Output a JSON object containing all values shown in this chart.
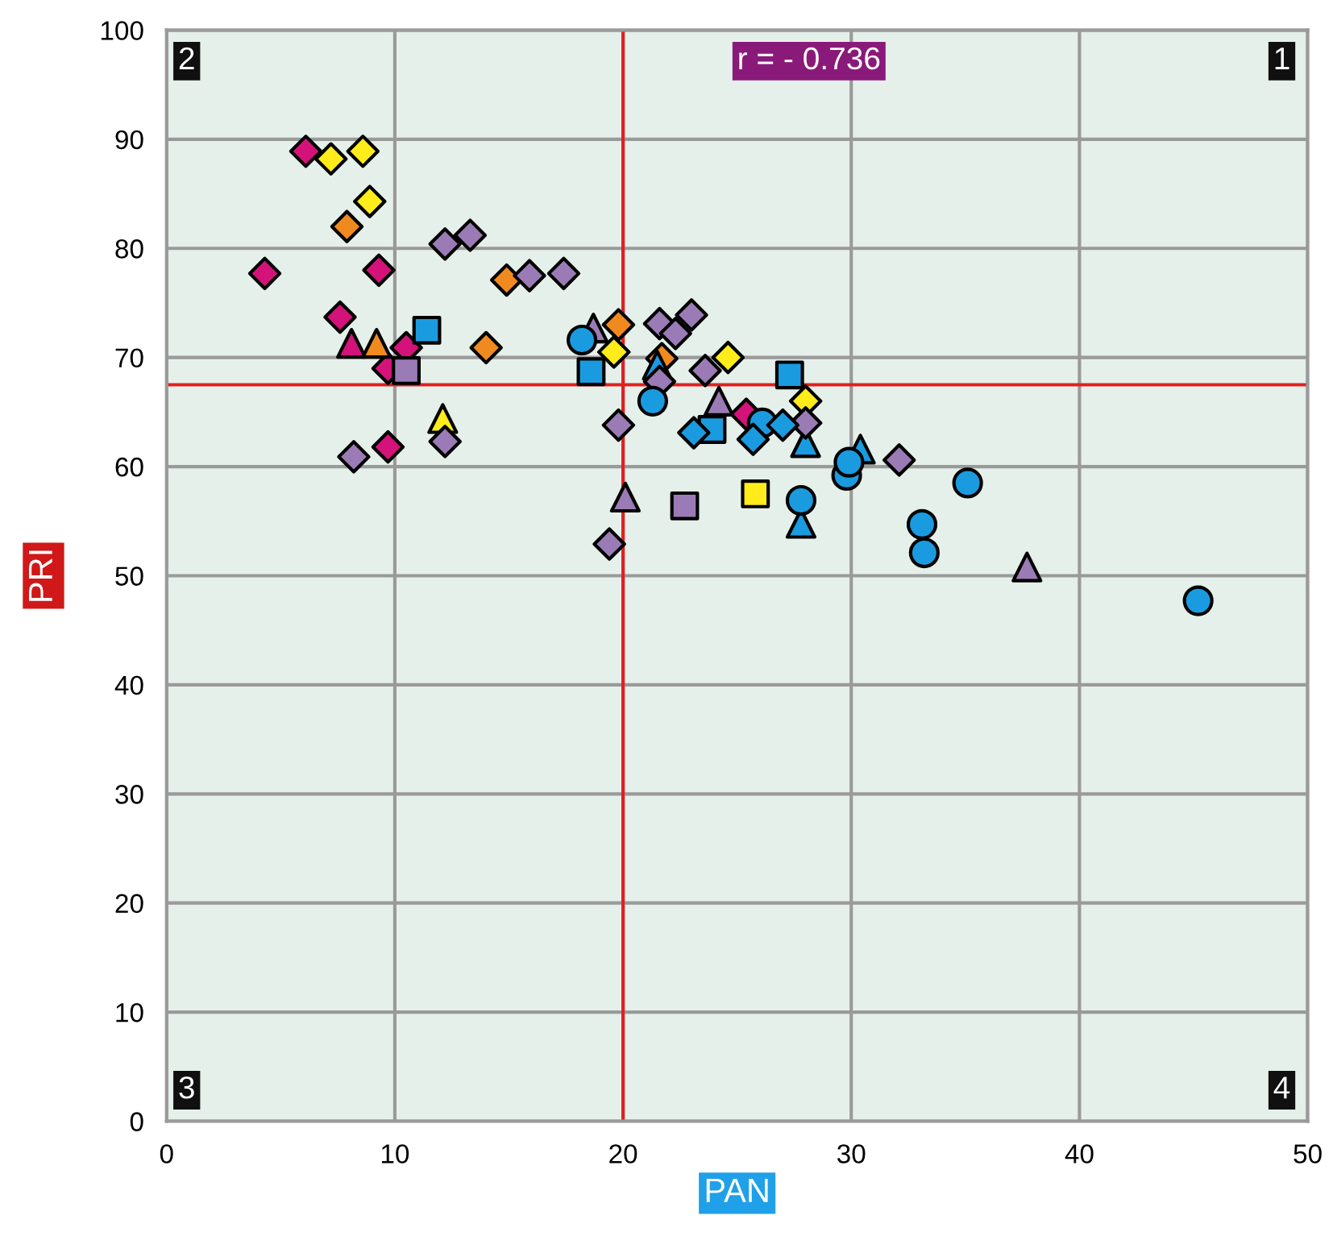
{
  "chart_data": {
    "type": "scatter",
    "xlabel": "PAN",
    "ylabel": "PRI",
    "xlim": [
      0,
      50
    ],
    "ylim": [
      0,
      100
    ],
    "xticks": [
      0,
      10,
      20,
      30,
      40,
      50
    ],
    "yticks": [
      0,
      10,
      20,
      30,
      40,
      50,
      60,
      70,
      80,
      90,
      100
    ],
    "grid": true,
    "ref_lines": [
      {
        "axis": "x",
        "value": 20,
        "color": "#e02020"
      },
      {
        "axis": "y",
        "value": 67.5,
        "color": "#e02020"
      }
    ],
    "annotations": [
      "r = - 0.736",
      "1",
      "2",
      "3",
      "4"
    ],
    "series": [
      {
        "color": "#d4137a",
        "marker": "diamond",
        "x": [
          6.1,
          4.3,
          9.3,
          7.6,
          10.5,
          9.7,
          9.7,
          25.4
        ],
        "values": [
          88.9,
          77.7,
          78.0,
          73.7,
          70.9,
          69.0,
          61.8,
          64.8
        ]
      },
      {
        "color": "#d4137a",
        "marker": "triangle",
        "x": [
          8.1
        ],
        "values": [
          71.3
        ]
      },
      {
        "color": "#ffec1a",
        "marker": "diamond",
        "x": [
          7.2,
          8.6,
          8.9,
          19.6,
          24.6,
          28.0
        ],
        "values": [
          88.2,
          88.9,
          84.3,
          70.5,
          70.0,
          66.0
        ]
      },
      {
        "color": "#ffec1a",
        "marker": "triangle",
        "x": [
          12.1
        ],
        "values": [
          64.4
        ]
      },
      {
        "color": "#ffec1a",
        "marker": "square",
        "x": [
          25.8
        ],
        "values": [
          57.5
        ]
      },
      {
        "color": "#f08a1e",
        "marker": "diamond",
        "x": [
          7.9,
          14.9,
          14.0,
          19.8,
          21.7
        ],
        "values": [
          82.0,
          77.1,
          70.9,
          73.0,
          69.9
        ]
      },
      {
        "color": "#f08a1e",
        "marker": "triangle",
        "x": [
          9.2
        ],
        "values": [
          71.3
        ]
      },
      {
        "color": "#1a9be0",
        "marker": "triangle",
        "x": [
          28.0,
          30.4,
          27.8,
          21.5
        ],
        "values": [
          62.2,
          61.6,
          54.8,
          69.3
        ]
      },
      {
        "color": "#9b7bb5",
        "marker": "diamond",
        "x": [
          12.2,
          13.3,
          15.9,
          17.4,
          12.2,
          8.2,
          21.6,
          22.3,
          23.0,
          23.6,
          21.6,
          19.8,
          28.0,
          32.1,
          19.4
        ],
        "values": [
          80.4,
          81.2,
          77.5,
          77.7,
          62.3,
          60.9,
          73.1,
          72.2,
          73.9,
          68.8,
          67.8,
          63.8,
          64.0,
          60.6,
          52.9
        ]
      },
      {
        "color": "#9b7bb5",
        "marker": "square",
        "x": [
          10.5,
          22.7
        ],
        "values": [
          68.8,
          56.4
        ]
      },
      {
        "color": "#9b7bb5",
        "marker": "triangle",
        "x": [
          18.7,
          24.2,
          20.1,
          37.7
        ],
        "values": [
          72.7,
          66.0,
          57.2,
          50.8
        ]
      },
      {
        "color": "#1a9be0",
        "marker": "circle",
        "x": [
          18.2,
          21.3,
          26.1,
          29.8,
          29.9,
          27.8,
          35.1,
          33.1,
          33.2,
          45.2
        ],
        "values": [
          71.6,
          66.0,
          64.0,
          59.2,
          60.4,
          56.9,
          58.5,
          54.7,
          52.1,
          47.7
        ]
      },
      {
        "color": "#1a9be0",
        "marker": "square",
        "x": [
          11.4,
          18.6,
          27.3,
          23.9
        ],
        "values": [
          72.5,
          68.7,
          68.4,
          63.4
        ]
      },
      {
        "color": "#1a9be0",
        "marker": "diamond",
        "x": [
          23.1,
          25.7,
          27.0
        ],
        "values": [
          63.1,
          62.5,
          63.8
        ]
      }
    ]
  }
}
